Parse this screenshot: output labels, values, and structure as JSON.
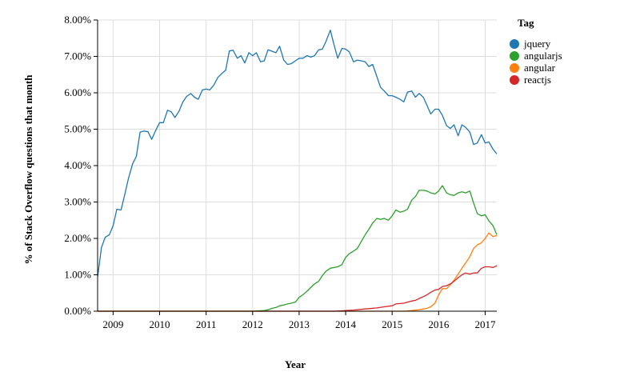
{
  "chart_data": {
    "type": "line",
    "xlabel": "Year",
    "ylabel": "% of Stack Overflow questions that month",
    "legend_title": "Tag",
    "legend_position": "right",
    "grid": true,
    "xlim": [
      2008.6667,
      2017.25
    ],
    "ylim": [
      0,
      8
    ],
    "x_ticks": [
      2009,
      2010,
      2011,
      2012,
      2013,
      2014,
      2015,
      2016,
      2017
    ],
    "x_tick_labels": [
      "2009",
      "2010",
      "2011",
      "2012",
      "2013",
      "2014",
      "2015",
      "2016",
      "2017"
    ],
    "y_ticks": [
      0,
      1,
      2,
      3,
      4,
      5,
      6,
      7,
      8
    ],
    "y_tick_labels": [
      "0.00%",
      "1.00%",
      "2.00%",
      "3.00%",
      "4.00%",
      "5.00%",
      "6.00%",
      "7.00%",
      "8.00%"
    ],
    "series": [
      {
        "name": "jquery",
        "color": "#1f77b4",
        "x": [
          2008.67,
          2008.75,
          2008.83,
          2008.92,
          2009.0,
          2009.08,
          2009.17,
          2009.25,
          2009.33,
          2009.42,
          2009.5,
          2009.58,
          2009.67,
          2009.75,
          2009.83,
          2009.92,
          2010.0,
          2010.08,
          2010.17,
          2010.25,
          2010.33,
          2010.42,
          2010.5,
          2010.58,
          2010.67,
          2010.75,
          2010.83,
          2010.92,
          2011.0,
          2011.08,
          2011.17,
          2011.25,
          2011.33,
          2011.42,
          2011.5,
          2011.58,
          2011.67,
          2011.75,
          2011.83,
          2011.92,
          2012.0,
          2012.08,
          2012.17,
          2012.25,
          2012.33,
          2012.42,
          2012.5,
          2012.58,
          2012.67,
          2012.75,
          2012.83,
          2012.92,
          2013.0,
          2013.08,
          2013.17,
          2013.25,
          2013.33,
          2013.42,
          2013.5,
          2013.58,
          2013.67,
          2013.75,
          2013.83,
          2013.92,
          2014.0,
          2014.08,
          2014.17,
          2014.25,
          2014.33,
          2014.42,
          2014.5,
          2014.58,
          2014.67,
          2014.75,
          2014.83,
          2014.92,
          2015.0,
          2015.08,
          2015.17,
          2015.25,
          2015.33,
          2015.42,
          2015.5,
          2015.58,
          2015.67,
          2015.75,
          2015.83,
          2015.92,
          2016.0,
          2016.08,
          2016.17,
          2016.25,
          2016.33,
          2016.42,
          2016.5,
          2016.58,
          2016.67,
          2016.75,
          2016.83,
          2016.92,
          2017.0,
          2017.08,
          2017.17,
          2017.25
        ],
        "values": [
          0.97,
          1.75,
          2.03,
          2.1,
          2.35,
          2.8,
          2.78,
          3.2,
          3.65,
          4.05,
          4.25,
          4.92,
          4.95,
          4.93,
          4.72,
          4.98,
          5.18,
          5.18,
          5.52,
          5.48,
          5.32,
          5.5,
          5.75,
          5.9,
          5.98,
          5.88,
          5.82,
          6.08,
          6.1,
          6.08,
          6.22,
          6.42,
          6.52,
          6.62,
          7.15,
          7.17,
          6.95,
          7.02,
          6.82,
          7.1,
          7.02,
          7.1,
          6.85,
          6.88,
          7.18,
          7.14,
          7.1,
          7.28,
          6.9,
          6.78,
          6.8,
          6.88,
          6.95,
          6.95,
          7.02,
          6.98,
          7.02,
          7.18,
          7.2,
          7.42,
          7.72,
          7.32,
          6.95,
          7.22,
          7.2,
          7.12,
          6.85,
          6.9,
          6.88,
          6.85,
          6.72,
          6.78,
          6.45,
          6.15,
          6.05,
          5.92,
          5.92,
          5.88,
          5.82,
          5.75,
          6.02,
          6.05,
          5.88,
          5.98,
          5.88,
          5.65,
          5.42,
          5.55,
          5.55,
          5.38,
          5.1,
          5.02,
          5.12,
          4.82,
          5.12,
          5.05,
          4.92,
          4.58,
          4.62,
          4.85,
          4.62,
          4.65,
          4.45,
          4.32
        ]
      },
      {
        "name": "angularjs",
        "color": "#2ca02c",
        "x": [
          2008.67,
          2012.0,
          2012.25,
          2012.33,
          2012.42,
          2012.5,
          2012.58,
          2012.67,
          2012.75,
          2012.83,
          2012.92,
          2013.0,
          2013.08,
          2013.17,
          2013.25,
          2013.33,
          2013.42,
          2013.5,
          2013.58,
          2013.67,
          2013.75,
          2013.83,
          2013.92,
          2014.0,
          2014.08,
          2014.17,
          2014.25,
          2014.33,
          2014.42,
          2014.5,
          2014.58,
          2014.67,
          2014.75,
          2014.83,
          2014.92,
          2015.0,
          2015.08,
          2015.17,
          2015.25,
          2015.33,
          2015.42,
          2015.5,
          2015.58,
          2015.67,
          2015.75,
          2015.83,
          2015.92,
          2016.0,
          2016.08,
          2016.17,
          2016.25,
          2016.33,
          2016.42,
          2016.5,
          2016.58,
          2016.67,
          2016.75,
          2016.83,
          2016.92,
          2017.0,
          2017.08,
          2017.17,
          2017.25
        ],
        "values": [
          0.0,
          0.0,
          0.02,
          0.04,
          0.08,
          0.1,
          0.15,
          0.17,
          0.2,
          0.22,
          0.25,
          0.38,
          0.45,
          0.55,
          0.65,
          0.75,
          0.82,
          0.98,
          1.1,
          1.18,
          1.2,
          1.22,
          1.28,
          1.48,
          1.58,
          1.65,
          1.72,
          1.9,
          2.1,
          2.25,
          2.42,
          2.55,
          2.52,
          2.55,
          2.5,
          2.62,
          2.78,
          2.72,
          2.75,
          2.8,
          3.05,
          3.15,
          3.32,
          3.32,
          3.3,
          3.25,
          3.22,
          3.3,
          3.45,
          3.25,
          3.2,
          3.18,
          3.25,
          3.28,
          3.25,
          3.3,
          2.98,
          2.68,
          2.62,
          2.65,
          2.48,
          2.35,
          2.1
        ]
      },
      {
        "name": "angular",
        "color": "#ff7f0e",
        "x": [
          2008.67,
          2015.25,
          2015.42,
          2015.58,
          2015.67,
          2015.75,
          2015.83,
          2015.92,
          2016.0,
          2016.08,
          2016.17,
          2016.25,
          2016.33,
          2016.42,
          2016.5,
          2016.58,
          2016.67,
          2016.75,
          2016.83,
          2016.92,
          2017.0,
          2017.08,
          2017.17,
          2017.25
        ],
        "values": [
          0.0,
          0.0,
          0.02,
          0.04,
          0.06,
          0.08,
          0.12,
          0.22,
          0.45,
          0.62,
          0.62,
          0.72,
          0.85,
          1.02,
          1.18,
          1.32,
          1.5,
          1.72,
          1.82,
          1.88,
          2.0,
          2.15,
          2.05,
          2.08
        ]
      },
      {
        "name": "reactjs",
        "color": "#d62728",
        "x": [
          2008.67,
          2013.75,
          2013.92,
          2014.0,
          2014.17,
          2014.33,
          2014.5,
          2014.67,
          2014.83,
          2015.0,
          2015.08,
          2015.25,
          2015.42,
          2015.5,
          2015.58,
          2015.67,
          2015.75,
          2015.83,
          2015.92,
          2016.0,
          2016.08,
          2016.17,
          2016.25,
          2016.33,
          2016.42,
          2016.5,
          2016.58,
          2016.67,
          2016.75,
          2016.83,
          2016.92,
          2017.0,
          2017.08,
          2017.17,
          2017.25
        ],
        "values": [
          0.0,
          0.0,
          0.01,
          0.02,
          0.03,
          0.05,
          0.07,
          0.09,
          0.12,
          0.15,
          0.2,
          0.22,
          0.28,
          0.3,
          0.35,
          0.4,
          0.45,
          0.52,
          0.58,
          0.6,
          0.68,
          0.7,
          0.75,
          0.82,
          0.92,
          1.0,
          1.05,
          1.02,
          1.05,
          1.05,
          1.18,
          1.22,
          1.22,
          1.2,
          1.25
        ]
      }
    ]
  }
}
